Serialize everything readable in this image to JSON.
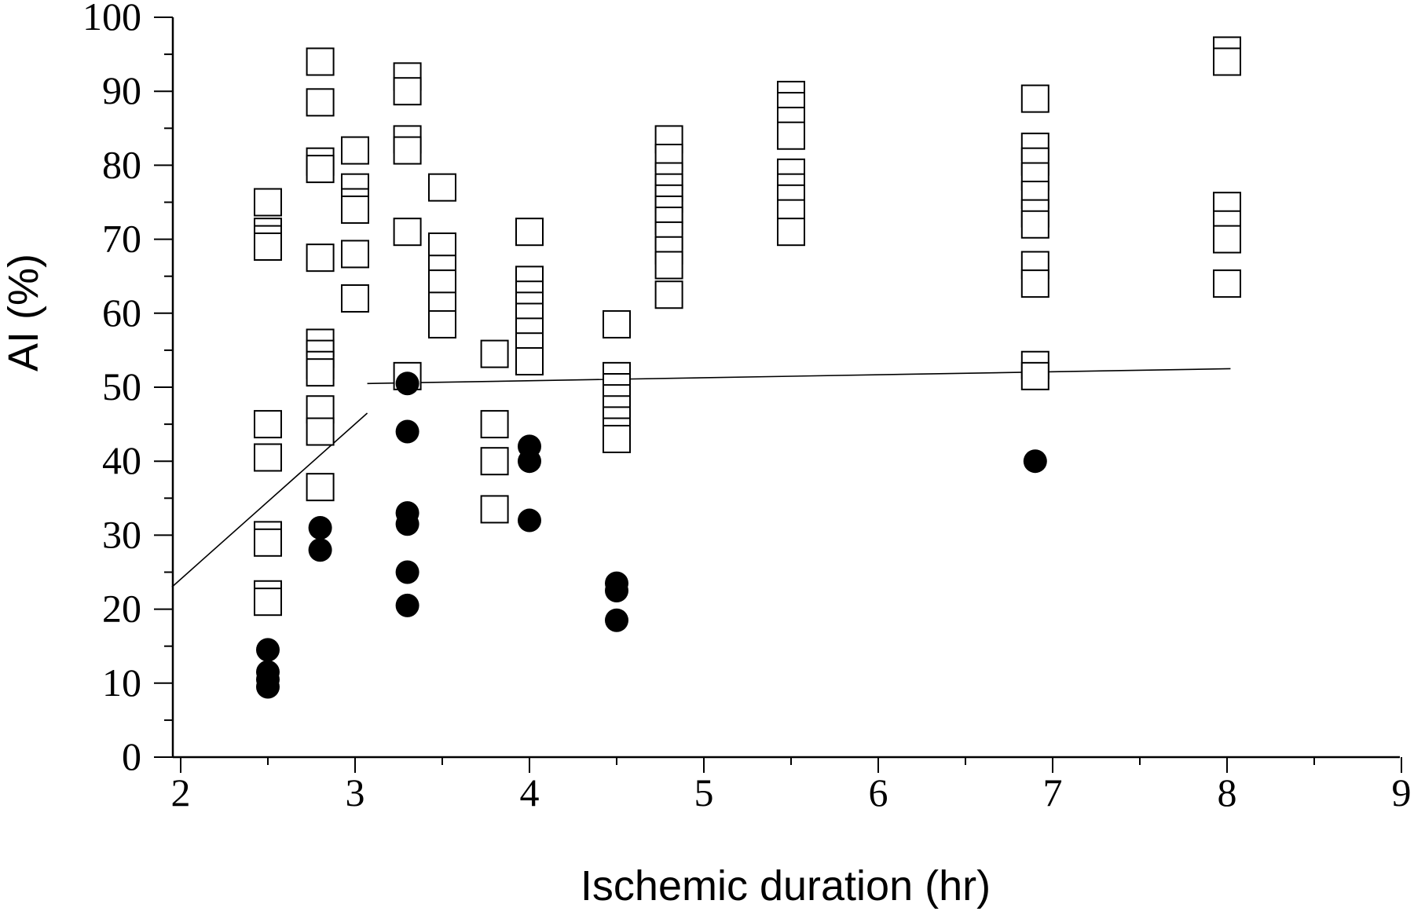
{
  "chart_data": {
    "type": "scatter",
    "title": "",
    "xlabel": "Ischemic duration (hr)",
    "ylabel": "AI (%)",
    "xlim": [
      2,
      9
    ],
    "ylim": [
      0,
      100
    ],
    "x_ticks": [
      2,
      3,
      4,
      5,
      6,
      7,
      8,
      9
    ],
    "y_ticks": [
      0,
      10,
      20,
      30,
      40,
      50,
      60,
      70,
      80,
      90,
      100
    ],
    "grid": false,
    "legend": "none",
    "series": [
      {
        "marker": "open-square",
        "color": "#000000",
        "points": [
          [
            2.5,
            75
          ],
          [
            2.5,
            71
          ],
          [
            2.5,
            70
          ],
          [
            2.5,
            69
          ],
          [
            2.5,
            45
          ],
          [
            2.5,
            40.5
          ],
          [
            2.5,
            30
          ],
          [
            2.5,
            29
          ],
          [
            2.5,
            22
          ],
          [
            2.5,
            21
          ],
          [
            2.8,
            94
          ],
          [
            2.8,
            88.5
          ],
          [
            2.8,
            80.5
          ],
          [
            2.8,
            79.5
          ],
          [
            2.8,
            67.5
          ],
          [
            2.8,
            56
          ],
          [
            2.8,
            54.5
          ],
          [
            2.8,
            53
          ],
          [
            2.8,
            52
          ],
          [
            2.8,
            47
          ],
          [
            2.8,
            44
          ],
          [
            2.8,
            36.5
          ],
          [
            3.0,
            82
          ],
          [
            3.0,
            77
          ],
          [
            3.0,
            75
          ],
          [
            3.0,
            74
          ],
          [
            3.0,
            68
          ],
          [
            3.0,
            62
          ],
          [
            3.3,
            92
          ],
          [
            3.3,
            90
          ],
          [
            3.3,
            83.5
          ],
          [
            3.3,
            82
          ],
          [
            3.3,
            71
          ],
          [
            3.3,
            51.5
          ],
          [
            3.5,
            77
          ],
          [
            3.5,
            69
          ],
          [
            3.5,
            66
          ],
          [
            3.5,
            64
          ],
          [
            3.5,
            61
          ],
          [
            3.5,
            58.5
          ],
          [
            3.8,
            54.5
          ],
          [
            3.8,
            45
          ],
          [
            3.8,
            40
          ],
          [
            3.8,
            33.5
          ],
          [
            4.0,
            71
          ],
          [
            4.0,
            64.5
          ],
          [
            4.0,
            62.5
          ],
          [
            4.0,
            61
          ],
          [
            4.0,
            59.5
          ],
          [
            4.0,
            57.5
          ],
          [
            4.0,
            55.5
          ],
          [
            4.0,
            53.5
          ],
          [
            4.5,
            58.5
          ],
          [
            4.5,
            51.5
          ],
          [
            4.5,
            50
          ],
          [
            4.5,
            48.5
          ],
          [
            4.5,
            47
          ],
          [
            4.5,
            45.5
          ],
          [
            4.5,
            44
          ],
          [
            4.5,
            43
          ],
          [
            4.8,
            83.5
          ],
          [
            4.8,
            81
          ],
          [
            4.8,
            78.5
          ],
          [
            4.8,
            77
          ],
          [
            4.8,
            75.5
          ],
          [
            4.8,
            74
          ],
          [
            4.8,
            72.5
          ],
          [
            4.8,
            70.5
          ],
          [
            4.8,
            68.5
          ],
          [
            4.8,
            66.5
          ],
          [
            4.8,
            62.5
          ],
          [
            5.5,
            89.5
          ],
          [
            5.5,
            88
          ],
          [
            5.5,
            86
          ],
          [
            5.5,
            84
          ],
          [
            5.5,
            79
          ],
          [
            5.5,
            77
          ],
          [
            5.5,
            75.5
          ],
          [
            5.5,
            73.5
          ],
          [
            5.5,
            71
          ],
          [
            6.9,
            89
          ],
          [
            6.9,
            82.5
          ],
          [
            6.9,
            80.5
          ],
          [
            6.9,
            78.5
          ],
          [
            6.9,
            76
          ],
          [
            6.9,
            73.5
          ],
          [
            6.9,
            72
          ],
          [
            6.9,
            66.5
          ],
          [
            6.9,
            64
          ],
          [
            6.9,
            53
          ],
          [
            6.9,
            51.5
          ],
          [
            8.0,
            95.5
          ],
          [
            8.0,
            94
          ],
          [
            8.0,
            74.5
          ],
          [
            8.0,
            72
          ],
          [
            8.0,
            70
          ],
          [
            8.0,
            64
          ]
        ]
      },
      {
        "marker": "filled-circle",
        "color": "#000000",
        "points": [
          [
            2.5,
            14.5
          ],
          [
            2.5,
            11.5
          ],
          [
            2.5,
            10.5
          ],
          [
            2.5,
            9.5
          ],
          [
            2.8,
            31
          ],
          [
            2.8,
            28
          ],
          [
            3.3,
            50.5
          ],
          [
            3.3,
            44
          ],
          [
            3.3,
            33
          ],
          [
            3.3,
            31.5
          ],
          [
            3.3,
            25
          ],
          [
            3.3,
            20.5
          ],
          [
            4.0,
            42
          ],
          [
            4.0,
            40
          ],
          [
            4.0,
            32
          ],
          [
            4.5,
            23.5
          ],
          [
            4.5,
            22.5
          ],
          [
            4.5,
            18.5
          ],
          [
            6.9,
            40
          ]
        ]
      }
    ],
    "lines": [
      {
        "points": [
          [
            1.95,
            23
          ],
          [
            3.07,
            46.5
          ]
        ]
      },
      {
        "points": [
          [
            3.07,
            50.5
          ],
          [
            8.02,
            52.5
          ]
        ]
      }
    ]
  }
}
